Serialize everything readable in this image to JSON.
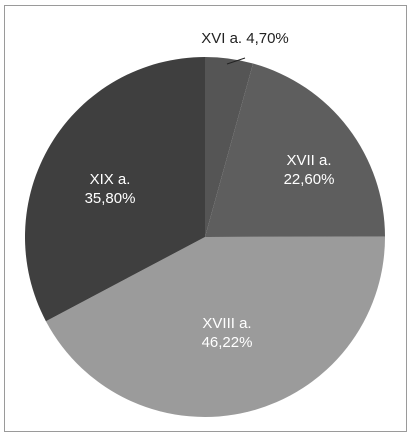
{
  "chart_data": {
    "type": "pie",
    "title": "",
    "slices": [
      {
        "label": "XVI a.",
        "value_text": "4,70%",
        "value": 4.7,
        "color": "#555555"
      },
      {
        "label": "XVII a.",
        "value_text": "22,60%",
        "value": 22.6,
        "color": "#5e5e5e"
      },
      {
        "label": "XVIII a.",
        "value_text": "46,22%",
        "value": 46.22,
        "color": "#9b9b9b"
      },
      {
        "label": "XIX a.",
        "value_text": "35,80%",
        "value": 35.8,
        "color": "#3f3f3f"
      }
    ],
    "legend": "none",
    "start_angle_deg": 0,
    "direction": "clockwise"
  }
}
